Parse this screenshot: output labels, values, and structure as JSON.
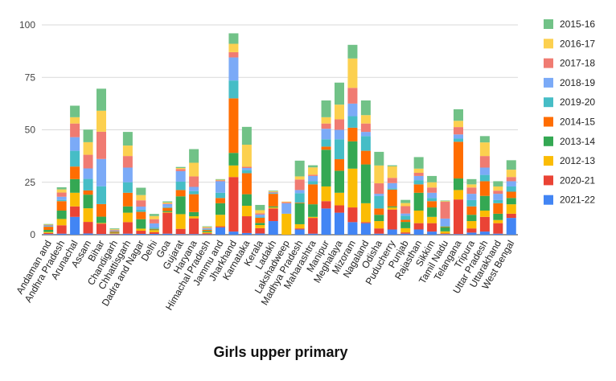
{
  "chart_data": {
    "type": "bar",
    "stacked": true,
    "title": "Girls upper primary",
    "xlabel": "",
    "ylabel": "",
    "ylim": [
      0,
      100
    ],
    "yticks": [
      0,
      25,
      50,
      75,
      100
    ],
    "grid": true,
    "legend_position": "right",
    "categories": [
      "Andaman and Nicobar Islands",
      "Andhra Pradesh",
      "Arunachal Pradesh",
      "Assam",
      "Bihar",
      "Chandigarh",
      "Chhattisgarh",
      "Dadra and Nagar Haveli",
      "Delhi",
      "Goa",
      "Gujarat",
      "Haryana",
      "Himachal Pradesh",
      "Jammu and Kashmir",
      "Jharkhand",
      "Karnataka",
      "Kerala",
      "Ladakh",
      "Lakshadweep",
      "Madhya Pradesh",
      "Maharashtra",
      "Manipur",
      "Meghalaya",
      "Mizoram",
      "Nagaland",
      "Odisha",
      "Puducherry",
      "Punjab",
      "Rajasthan",
      "Sikkim",
      "Tamil Nadu",
      "Telangana",
      "Tripura",
      "Uttar Pradesh",
      "Uttarakhand",
      "West Bengal"
    ],
    "category_labels": [
      "Andaman and",
      "Andhra Pradesh",
      "Arunachal",
      "Assam",
      "Bihar",
      "Chandigarh",
      "Chhattisgarh",
      "Dadra and Nagar",
      "Delhi",
      "Goa",
      "Gujarat",
      "Haryana",
      "Himachal Pradesh",
      "Jammu and",
      "Jharkhand",
      "Karnataka",
      "Kerala",
      "Ladakh",
      "Lakshadweep",
      "Madhya Pradesh",
      "Maharashtra",
      "Manipur",
      "Meghalaya",
      "Mizoram",
      "Nagaland",
      "Odisha",
      "Puducherry",
      "Punjab",
      "Rajasthan",
      "Sikkim",
      "Tamil Nadu",
      "Telangana",
      "Tripura",
      "Uttar Pradesh",
      "Uttarakhand",
      "West Bengal"
    ],
    "series": [
      {
        "name": "2021-22",
        "color": "#4285f4",
        "values": [
          0.3,
          0.5,
          8.5,
          0.6,
          0.3,
          0.2,
          0.5,
          0.4,
          0.4,
          0.5,
          0.3,
          0.3,
          0.2,
          3.5,
          1.5,
          0.8,
          0.6,
          6.5,
          0,
          2.5,
          0.5,
          12.5,
          10.5,
          6.0,
          5.5,
          0.5,
          2.5,
          0.5,
          2.5,
          1.5,
          0.3,
          0.3,
          1.0,
          1.5,
          0.5,
          8.0
        ]
      },
      {
        "name": "2020-21",
        "color": "#ea4335",
        "values": [
          0.5,
          4.0,
          5.0,
          5.5,
          5.0,
          0.3,
          5.5,
          1.5,
          0.8,
          10.0,
          2.5,
          7.5,
          0.5,
          0.5,
          26.0,
          8.0,
          2.5,
          6.0,
          0,
          0.5,
          7.5,
          3.5,
          3.5,
          7.0,
          0.5,
          2.5,
          9.5,
          0.6,
          3.0,
          4.0,
          0.3,
          16.5,
          2.0,
          7.0,
          5.0,
          2.0
        ]
      },
      {
        "name": "2012-13",
        "color": "#fbbc04",
        "values": [
          0.5,
          3.0,
          6.5,
          6.5,
          0.3,
          0.2,
          4.5,
          1.0,
          1.0,
          0.3,
          7.0,
          1.0,
          0.5,
          5.5,
          5.5,
          5.0,
          1.5,
          0.5,
          10.0,
          2.0,
          0.5,
          7.0,
          6.0,
          18.5,
          9.0,
          3.5,
          1.0,
          2.0,
          6.0,
          3.0,
          1.0,
          4.5,
          3.5,
          3.0,
          1.5,
          4.5
        ]
      },
      {
        "name": "2013-14",
        "color": "#34a853",
        "values": [
          1.0,
          4.0,
          6.5,
          6.5,
          3.0,
          0.3,
          3.0,
          4.5,
          0.3,
          0.5,
          8.5,
          2.0,
          0.6,
          5.5,
          6.0,
          5.5,
          1.0,
          0.5,
          0,
          10.0,
          6.0,
          17.5,
          10.5,
          13.0,
          18.5,
          3.0,
          0.5,
          3.0,
          8.5,
          4.5,
          2.0,
          5.5,
          3.0,
          7.0,
          3.0,
          3.0
        ]
      },
      {
        "name": "2014-15",
        "color": "#ff6d01",
        "values": [
          1.5,
          4.5,
          6.0,
          2.0,
          6.0,
          0.5,
          6.5,
          3.5,
          0.3,
          1.5,
          3.0,
          8.5,
          0.5,
          2.5,
          26.0,
          10.0,
          2.5,
          6.0,
          0,
          0.3,
          9.5,
          1.5,
          5.5,
          6.5,
          6.5,
          3.0,
          8.0,
          1.0,
          4.0,
          3.0,
          0.3,
          17.5,
          4.0,
          7.0,
          5.0,
          3.0
        ]
      },
      {
        "name": "2019-20",
        "color": "#46bdc6",
        "values": [
          0.3,
          0.6,
          7.5,
          5.5,
          8.5,
          0.2,
          5.0,
          1.0,
          0.6,
          0.3,
          4.0,
          1.5,
          0.3,
          2.5,
          8.5,
          1.5,
          0.5,
          0.3,
          0,
          4.5,
          1.5,
          3.5,
          9.5,
          5.5,
          7.0,
          6.0,
          0.6,
          2.0,
          2.0,
          1.5,
          0.3,
          1.5,
          3.0,
          3.0,
          1.5,
          2.5
        ]
      },
      {
        "name": "2018-19",
        "color": "#7baaf7",
        "values": [
          0.3,
          1.5,
          6.5,
          5.0,
          13.0,
          0.3,
          7.0,
          1.5,
          2.0,
          1.5,
          5.0,
          2.0,
          0.4,
          5.5,
          11.0,
          1.0,
          1.0,
          0.3,
          5.0,
          1.5,
          2.5,
          5.0,
          4.5,
          6.0,
          2.0,
          1.0,
          2.5,
          1.0,
          2.0,
          2.5,
          3.5,
          2.0,
          3.0,
          3.5,
          3.0,
          2.5
        ]
      },
      {
        "name": "2017-18",
        "color": "#f07b72",
        "values": [
          0.2,
          2.0,
          6.5,
          6.5,
          13.0,
          0.3,
          5.5,
          3.0,
          2.0,
          0.3,
          1.0,
          5.0,
          0.3,
          0.4,
          2.5,
          0.6,
          0.6,
          0.3,
          0.5,
          5.0,
          0.6,
          2.5,
          5.0,
          7.5,
          4.0,
          5.0,
          2.5,
          3.5,
          1.5,
          2.5,
          8.0,
          3.5,
          3.0,
          5.5,
          1.5,
          2.0
        ]
      },
      {
        "name": "2016-17",
        "color": "#fcd04f",
        "values": [
          0.2,
          1.5,
          3.0,
          6.0,
          10.0,
          0.3,
          5.0,
          2.5,
          1.5,
          0.5,
          0.5,
          6.5,
          0.4,
          0.3,
          4.0,
          10.5,
          1.5,
          0.3,
          0.3,
          1.5,
          3.5,
          3.0,
          7.0,
          14.0,
          4.0,
          8.5,
          5.5,
          1.5,
          2.0,
          2.5,
          0.3,
          3.0,
          1.5,
          6.5,
          2.0,
          3.5
        ]
      },
      {
        "name": "2015-16",
        "color": "#71c287",
        "values": [
          0.3,
          1.0,
          5.5,
          6.0,
          10.5,
          0.4,
          6.5,
          3.5,
          1.0,
          0.5,
          0.5,
          6.5,
          0.3,
          0.3,
          5.0,
          8.5,
          2.5,
          0.3,
          0,
          7.5,
          1.0,
          8.0,
          10.5,
          6.5,
          7.0,
          6.5,
          0.5,
          1.5,
          5.5,
          3.0,
          0.3,
          5.5,
          2.5,
          3.0,
          2.5,
          4.5
        ]
      }
    ]
  }
}
